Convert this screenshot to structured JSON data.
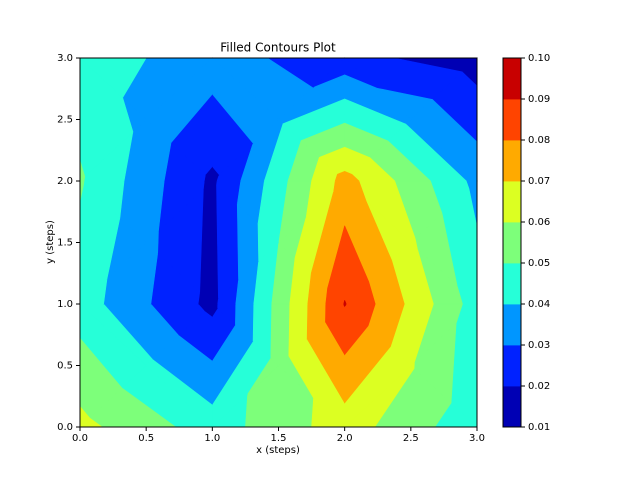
{
  "chart_data": {
    "type": "contourf",
    "title": "Filled Contours Plot",
    "xlabel": "x (steps)",
    "ylabel": "y (steps)",
    "x": [
      0,
      1,
      2,
      3
    ],
    "y": [
      0,
      1,
      2,
      3
    ],
    "z": [
      [
        0.063,
        0.045,
        0.065,
        0.043
      ],
      [
        0.045,
        0.017,
        0.0905,
        0.045
      ],
      [
        0.051,
        0.018,
        0.074,
        0.037
      ],
      [
        0.045,
        0.035,
        0.023,
        0.015
      ]
    ],
    "xlim": [
      0,
      3
    ],
    "ylim": [
      0,
      3
    ],
    "xticks": [
      {
        "value": 0,
        "label": "0.0"
      },
      0.5,
      {
        "value": 1,
        "label": "1.0"
      },
      1.5,
      {
        "value": 2,
        "label": "2.0"
      },
      2.5,
      {
        "value": 3,
        "label": "3.0"
      }
    ],
    "yticks": [
      {
        "value": 0,
        "label": "0.0"
      },
      0.5,
      {
        "value": 1,
        "label": "1.0"
      },
      1.5,
      {
        "value": 2,
        "label": "2.0"
      },
      2.5,
      {
        "value": 3,
        "label": "3.0"
      }
    ],
    "levels": [
      0.01,
      0.02,
      0.03,
      0.04,
      0.05,
      0.06,
      0.07,
      0.08,
      0.09,
      {
        "value": 0.1,
        "label": "0.10"
      }
    ],
    "colors": [
      "#0000b4",
      "#0022ff",
      "#0096ff",
      "#26ffd8",
      "#7dff7a",
      "#dcff22",
      "#ffaa00",
      "#ff4400",
      "#c80000"
    ]
  }
}
